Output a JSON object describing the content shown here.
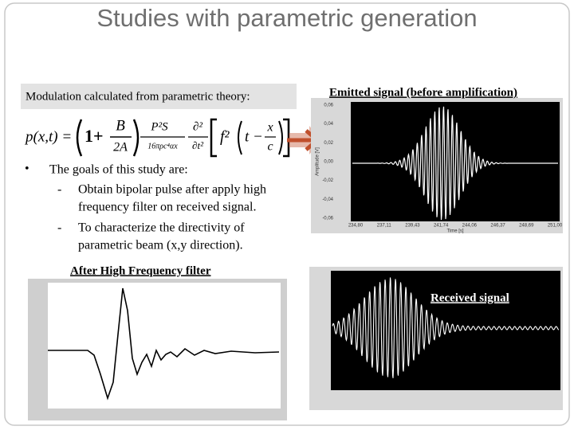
{
  "header": {
    "title": "Studies with parametric generation"
  },
  "modulation": {
    "label": "Modulation calculated from parametric theory:",
    "formula": {
      "lhs": "p(x,t) =",
      "one_plus": "1+",
      "b": "B",
      "two_a": "2A",
      "num": "P²S",
      "den": "16πρc⁴αx",
      "d2": "∂²",
      "dt2": "∂t²",
      "f2": "f²",
      "t_minus": "t −",
      "x": "x",
      "c": "c"
    }
  },
  "bullets": {
    "marker": "•",
    "intro": "The goals of this study are:",
    "items": [
      {
        "dash": "-",
        "lines": [
          "Obtain bipolar pulse after apply high",
          "frequency filter on received signal."
        ]
      },
      {
        "dash": "-",
        "lines": [
          "To characterize the directivity of",
          "parametric beam (x,y direction)."
        ]
      }
    ]
  },
  "emitted_plot": {
    "caption": "Emitted signal (before amplification)",
    "yticks": [
      "0,06",
      "0,04",
      "0,02",
      "0,00",
      "-0,02",
      "-0,04",
      "-0,06"
    ],
    "xticks": [
      "234,80",
      "237,11",
      "239,43",
      "241,74",
      "244,06",
      "246,37",
      "248,69",
      "251,00"
    ],
    "x_label": "Time [s]",
    "y_label": "Amplitude [V]"
  },
  "filtered_plot": {
    "caption": "After High Frequency filter"
  },
  "received_plot": {
    "caption": "Received signal"
  }
}
